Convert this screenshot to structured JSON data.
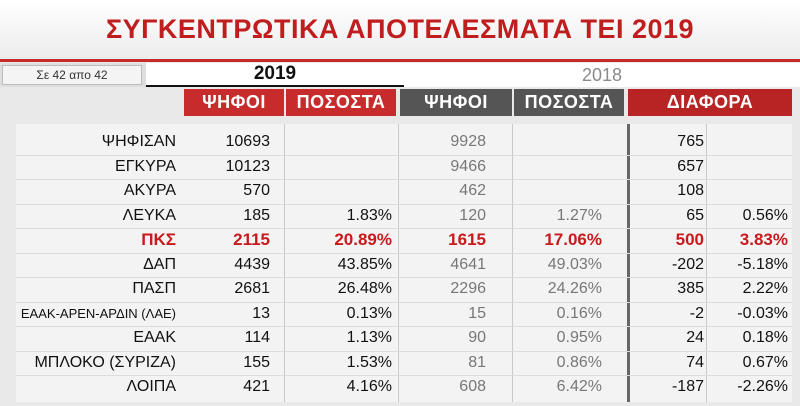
{
  "title": "ΣΥΓΚΕΝΤΡΩΤΙΚΑ ΑΠΟΤΕΛΕΣΜΑΤΑ ΤΕΙ 2019",
  "counter": "Σε 42 απο 42",
  "year_current": "2019",
  "year_previous": "2018",
  "headers": {
    "votes_2019": "ΨΗΦΟΙ",
    "pct_2019": "ΠΟΣΟΣΤΑ",
    "votes_2018": "ΨΗΦΟΙ",
    "pct_2018": "ΠΟΣΟΣΤΑ",
    "difference": "ΔΙΑΦΟΡΑ"
  },
  "colors": {
    "accent_red": "#c82b2b",
    "highlight_red": "#c8191c",
    "header_gray": "#555555"
  },
  "rows": [
    {
      "label": "ΨΗΦΙΣΑΝ",
      "v19": "10693",
      "p19": "",
      "v18": "9928",
      "p18": "",
      "dv": "765",
      "dp": ""
    },
    {
      "label": "ΕΓΚΥΡΑ",
      "v19": "10123",
      "p19": "",
      "v18": "9466",
      "p18": "",
      "dv": "657",
      "dp": ""
    },
    {
      "label": "ΑΚΥΡΑ",
      "v19": "570",
      "p19": "",
      "v18": "462",
      "p18": "",
      "dv": "108",
      "dp": ""
    },
    {
      "label": "ΛΕΥΚΑ",
      "v19": "185",
      "p19": "1.83%",
      "v18": "120",
      "p18": "1.27%",
      "dv": "65",
      "dp": "0.56%"
    },
    {
      "label": "ΠΚΣ",
      "v19": "2115",
      "p19": "20.89%",
      "v18": "1615",
      "p18": "17.06%",
      "dv": "500",
      "dp": "3.83%"
    },
    {
      "label": "ΔΑΠ",
      "v19": "4439",
      "p19": "43.85%",
      "v18": "4641",
      "p18": "49.03%",
      "dv": "-202",
      "dp": "-5.18%"
    },
    {
      "label": "ΠΑΣΠ",
      "v19": "2681",
      "p19": "26.48%",
      "v18": "2296",
      "p18": "24.26%",
      "dv": "385",
      "dp": "2.22%"
    },
    {
      "label": "ΕΑΑΚ-ΑΡΕΝ-ΑΡΔΙΝ (ΛΑΕ)",
      "v19": "13",
      "p19": "0.13%",
      "v18": "15",
      "p18": "0.16%",
      "dv": "-2",
      "dp": "-0.03%"
    },
    {
      "label": "ΕΑΑΚ",
      "v19": "114",
      "p19": "1.13%",
      "v18": "90",
      "p18": "0.95%",
      "dv": "24",
      "dp": "0.18%"
    },
    {
      "label": "ΜΠΛΟΚΟ (ΣΥΡΙΖΑ)",
      "v19": "155",
      "p19": "1.53%",
      "v18": "81",
      "p18": "0.86%",
      "dv": "74",
      "dp": "0.67%"
    },
    {
      "label": "ΛΟΙΠΑ",
      "v19": "421",
      "p19": "4.16%",
      "v18": "608",
      "p18": "6.42%",
      "dv": "-187",
      "dp": "-2.26%"
    }
  ]
}
